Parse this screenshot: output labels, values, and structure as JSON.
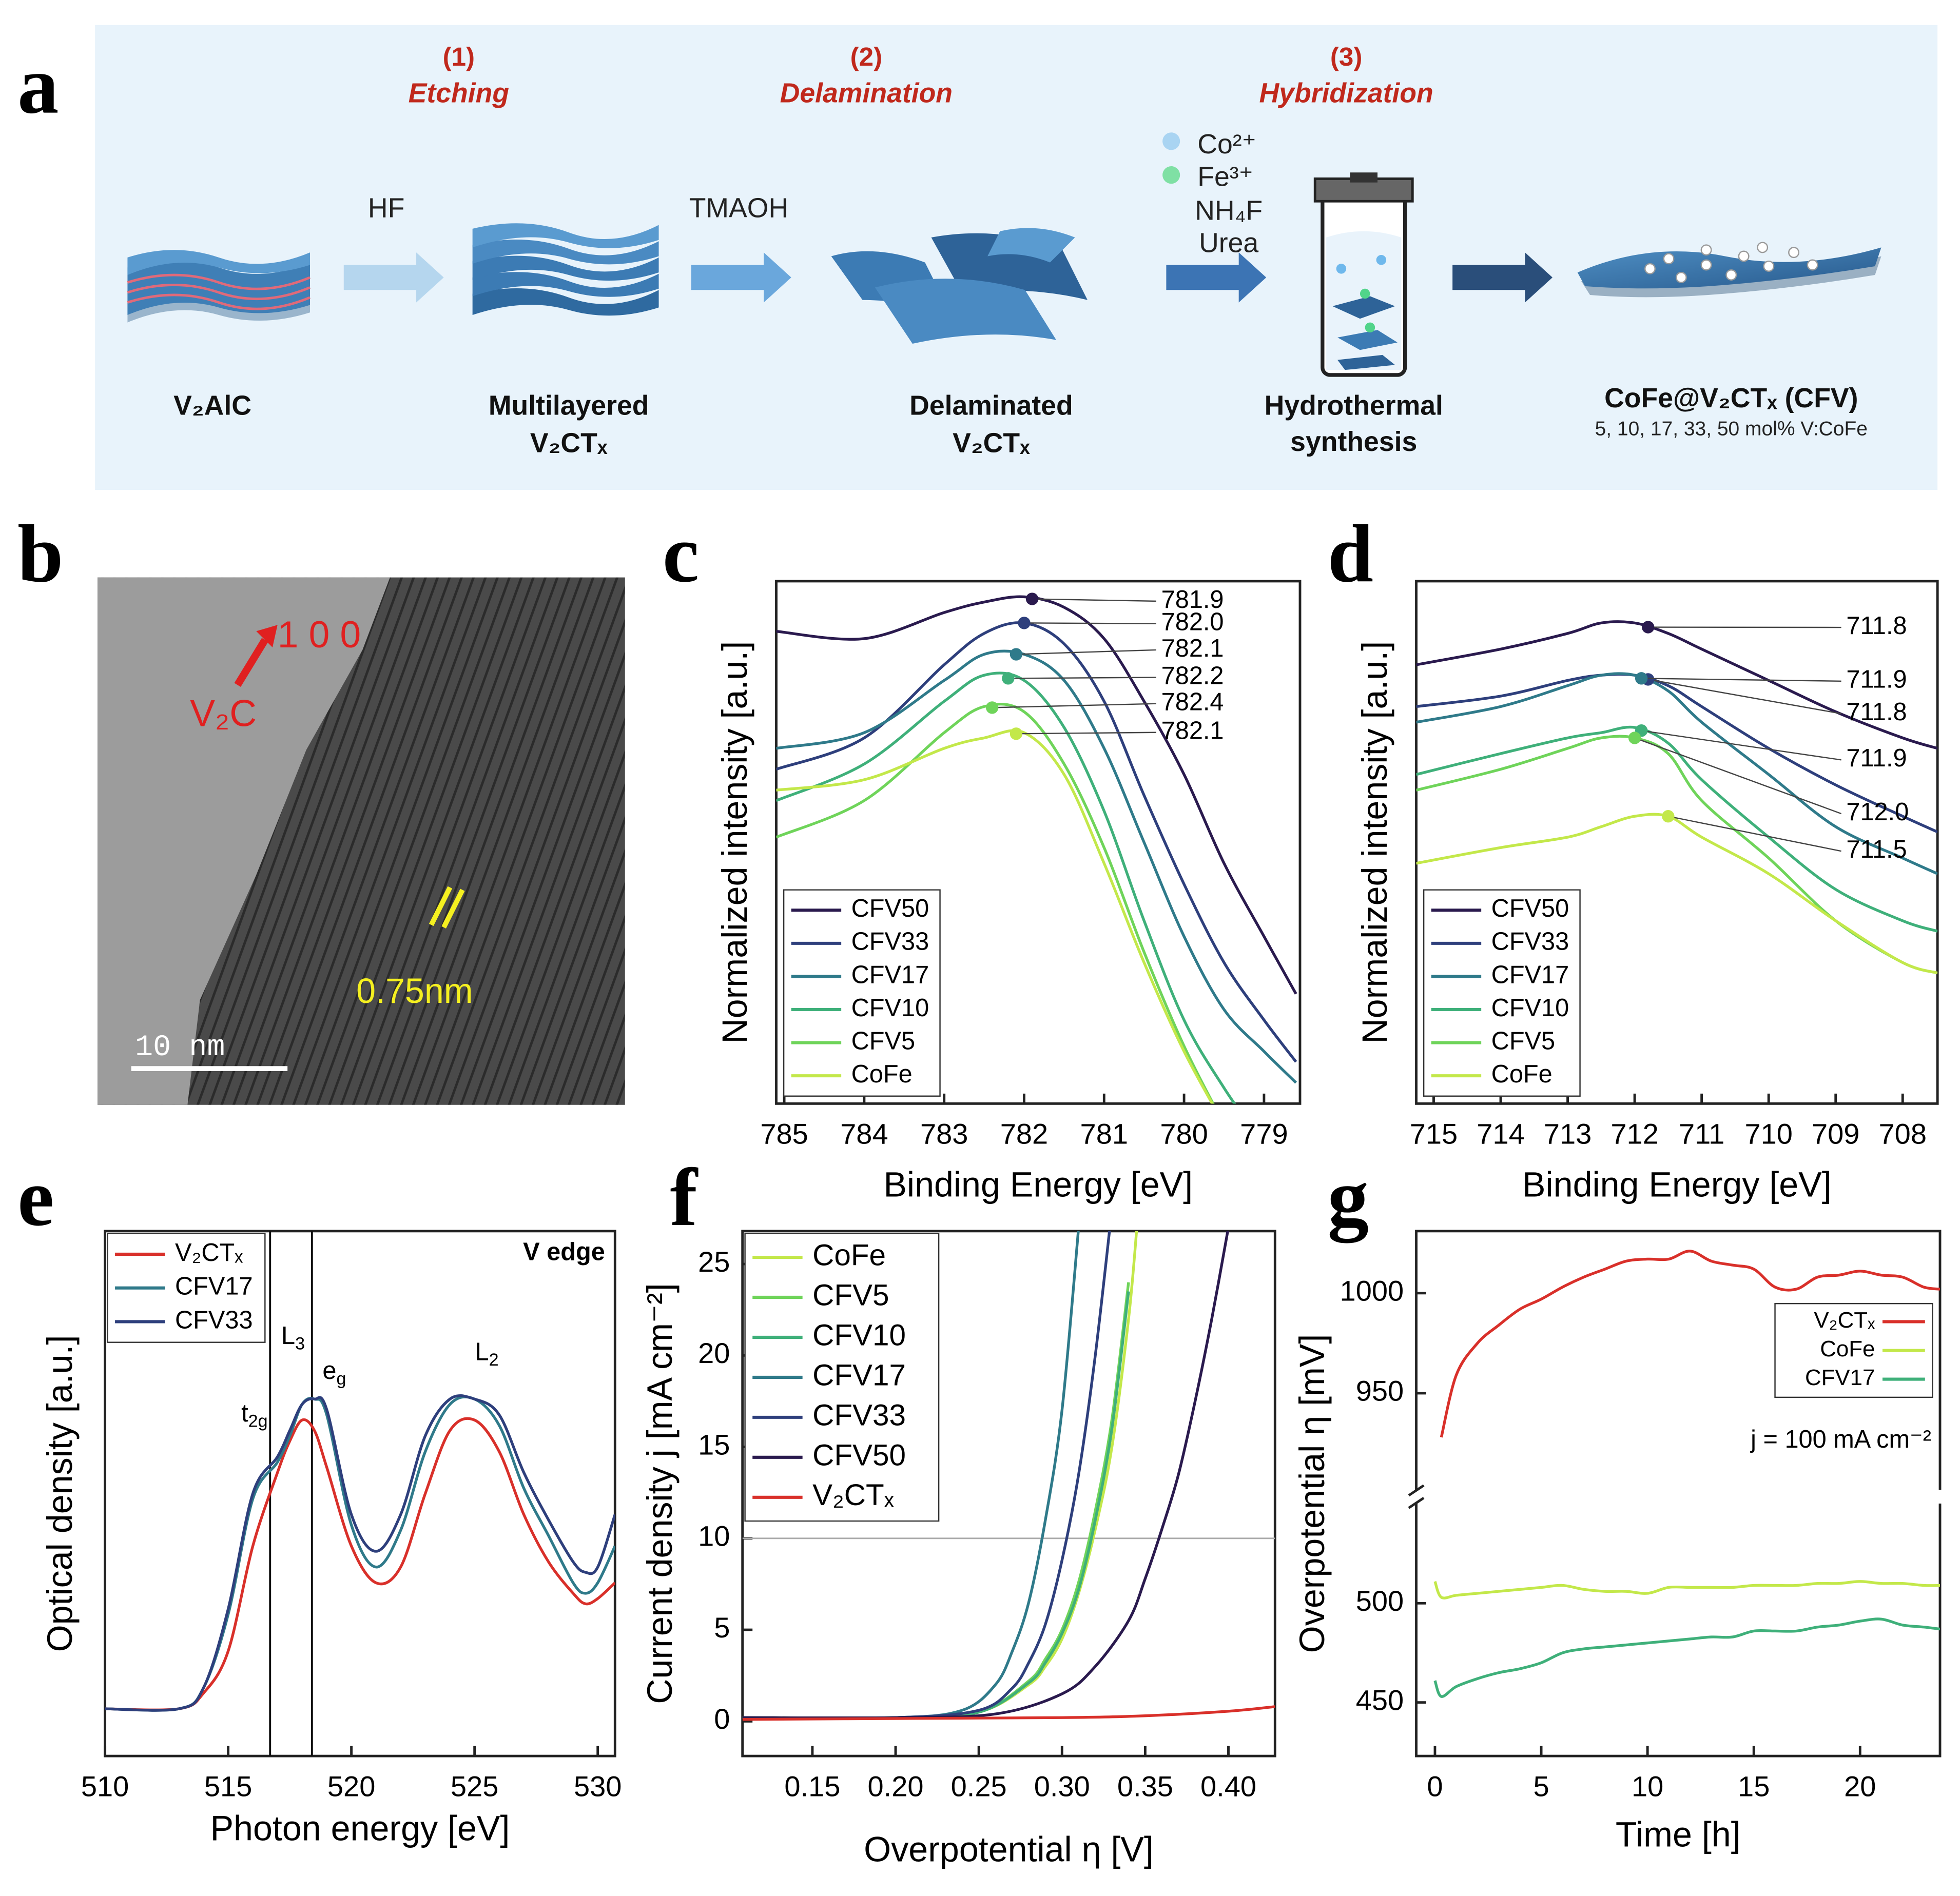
{
  "panel_labels": [
    "a",
    "b",
    "c",
    "d",
    "e",
    "f",
    "g"
  ],
  "scheme": {
    "steps": [
      {
        "number": "(1)",
        "name": "Etching"
      },
      {
        "number": "(2)",
        "name": "Delamination"
      },
      {
        "number": "(3)",
        "name": "Hybridization"
      }
    ],
    "reagents": [
      "HF",
      "TMAOH"
    ],
    "precursors": [
      "Co²⁺",
      "Fe³⁺",
      "NH₄F",
      "Urea"
    ],
    "materials": [
      [
        "V₂AlC"
      ],
      [
        "Multilayered",
        "V₂CTₓ"
      ],
      [
        "Delaminated",
        "V₂CTₓ"
      ],
      [
        "Hydrothermal",
        "synthesis"
      ],
      [
        "CoFe@V₂CTₓ (CFV)"
      ]
    ],
    "compositions": "5, 10, 17, 33, 50 mol% V:CoFe"
  },
  "micrograph": {
    "direction": "1 0 0",
    "phase": "V₂C",
    "spacing": "0.75nm",
    "scale_bar": "10 nm"
  },
  "chart_data": [
    {
      "type": "line",
      "xlabel": "Binding Energy [eV]",
      "ylabel": "Normalized intensity [a.u.]",
      "xlim": [
        785.1,
        778.55
      ],
      "ylim": [
        0,
        100
      ],
      "xticks": [
        785,
        784,
        783,
        782,
        781,
        780,
        779
      ],
      "legend": "lower left",
      "x": [
        785.1,
        784,
        783,
        782.5,
        782,
        781.5,
        781,
        780.5,
        780,
        779.5,
        779,
        778.6
      ],
      "series": [
        {
          "name": "CFV50",
          "color": "#2a1a4e",
          "values": [
            90.4,
            89,
            94,
            96,
            97,
            95,
            89,
            77,
            63,
            46,
            32,
            21
          ],
          "peak": 781.9
        },
        {
          "name": "CFV33",
          "color": "#2e3f7c",
          "values": [
            64,
            70,
            84,
            90,
            92,
            88,
            77,
            59,
            42,
            27,
            16,
            8
          ],
          "peak": {
            "value": 782.0,
            "label": "782.0"
          }
        },
        {
          "name": "CFV17",
          "color": "#2f7a8a",
          "values": [
            68,
            71,
            81,
            86,
            86,
            81,
            68,
            50,
            32,
            18,
            10,
            4
          ],
          "peak": 782.1
        },
        {
          "name": "CFV10",
          "color": "#3fb07a",
          "values": [
            58,
            65,
            77,
            82,
            81,
            72,
            56,
            35,
            16,
            3,
            -8,
            null
          ],
          "peak": 782.2
        },
        {
          "name": "CFV5",
          "color": "#6fd45a",
          "values": [
            51,
            58,
            71,
            76,
            75,
            65,
            49,
            29,
            11,
            -4,
            null,
            null
          ],
          "peak": 782.4
        },
        {
          "name": "CoFe",
          "color": "#c3e84a",
          "values": [
            60,
            62,
            68,
            70,
            71,
            63,
            46,
            27,
            10,
            -4,
            null,
            null
          ],
          "peak": 782.1
        }
      ]
    },
    {
      "type": "line",
      "xlabel": "Binding Energy [eV]",
      "ylabel": "Normalized intensity [a.u.]",
      "xlim": [
        715.26,
        707.48
      ],
      "ylim": [
        0,
        100
      ],
      "xticks": [
        715,
        714,
        713,
        712,
        711,
        710,
        709,
        708
      ],
      "legend": "lower left",
      "x": [
        715.26,
        714,
        713,
        712.5,
        712,
        711.5,
        711,
        710,
        709,
        708,
        707.48
      ],
      "series": [
        {
          "name": "CFV50",
          "color": "#2a1a4e",
          "values": [
            84,
            87,
            90,
            92,
            92,
            90,
            87,
            81,
            75,
            70,
            68
          ],
          "peak": 711.8
        },
        {
          "name": "CFV33",
          "color": "#2e3f7c",
          "values": [
            76,
            78,
            81,
            82,
            82,
            80,
            76,
            68,
            61,
            55,
            52
          ],
          "peak": 711.8
        },
        {
          "name": "CFV17",
          "color": "#2f7a8a",
          "values": [
            73,
            76,
            80,
            82,
            82,
            79,
            73,
            63,
            53,
            47,
            44
          ],
          "peak": 711.9
        },
        {
          "name": "CFV10",
          "color": "#3fb07a",
          "values": [
            63,
            67,
            70,
            71,
            72,
            69,
            62,
            51,
            41,
            35,
            33
          ],
          "peak": 711.9
        },
        {
          "name": "CFV5",
          "color": "#6fd45a",
          "values": [
            60,
            64,
            68,
            70,
            70,
            67,
            58,
            47,
            35,
            27,
            25
          ],
          "peak": {
            "value": 712.0,
            "label": "712.0"
          }
        },
        {
          "name": "CoFe",
          "color": "#c3e84a",
          "values": [
            46,
            49,
            51,
            53,
            55,
            55,
            51,
            44,
            35,
            27,
            25
          ],
          "peak": 711.5
        }
      ]
    },
    {
      "type": "line",
      "xlabel": "Photon energy  [eV]",
      "ylabel": "Optical density [a.u.]",
      "xlim": [
        510,
        530.7
      ],
      "ylim": [
        0,
        100
      ],
      "xticks": [
        510,
        515,
        520,
        525,
        530
      ],
      "legend": "upper left",
      "vlines": [
        516.7,
        518.4
      ],
      "annotations": [
        {
          "text": "V edge"
        },
        {
          "text": "L",
          "sub": "3"
        },
        {
          "text": "e",
          "sub": "g"
        },
        {
          "text": "t",
          "sub": "2g"
        },
        {
          "text": "L",
          "sub": "2"
        }
      ],
      "x": [
        510,
        513,
        514,
        515,
        516,
        517,
        517.5,
        518,
        518.5,
        519,
        520,
        521,
        522,
        523,
        524,
        525,
        526,
        527,
        528,
        529,
        529.5,
        530,
        530.7
      ],
      "series": [
        {
          "name": "V₂CTₓ",
          "color": "#d9302a",
          "values": [
            9,
            9,
            12,
            20,
            40,
            54,
            60,
            64,
            62,
            55,
            40,
            33,
            36,
            50,
            62,
            64,
            58,
            46,
            37,
            31,
            29,
            30,
            33
          ]
        },
        {
          "name": "CFV17",
          "color": "#2f7a8a",
          "values": [
            9,
            9,
            13,
            27,
            49,
            56,
            61,
            67,
            68,
            65,
            44,
            36,
            43,
            58,
            67,
            68,
            63,
            51,
            42,
            33,
            31,
            33,
            40
          ]
        },
        {
          "name": "CFV33",
          "color": "#2e3f7c",
          "values": [
            9,
            9,
            13,
            28,
            50,
            57,
            62,
            67,
            68,
            66,
            46,
            39,
            46,
            61,
            68,
            68,
            65,
            54,
            45,
            37,
            35,
            36,
            46
          ]
        }
      ]
    },
    {
      "type": "line",
      "xlabel": "Overpotential η [V]",
      "ylabel": "Current density j [mA cm⁻²]",
      "xlim": [
        0.108,
        0.428
      ],
      "ylim": [
        -1.9,
        26.8
      ],
      "xticks": [
        0.15,
        {
          "value": 0.2,
          "label": "0.20"
        },
        0.25,
        {
          "value": 0.3,
          "label": "0.30"
        },
        0.35,
        {
          "value": 0.4,
          "label": "0.40"
        }
      ],
      "yticks": [
        0,
        5,
        10,
        15,
        20,
        25
      ],
      "legend": "upper left",
      "hlines": [
        10
      ],
      "series": [
        {
          "name": "CoFe",
          "color": "#c3e84a",
          "x": [
            0.108,
            0.2,
            0.25,
            0.28,
            0.29,
            0.3,
            0.31,
            0.32,
            0.33,
            0.34,
            0.345
          ],
          "values": [
            0.2,
            0.2,
            0.5,
            2,
            3,
            4.5,
            7,
            10.5,
            15,
            22,
            27
          ]
        },
        {
          "name": "CFV5",
          "color": "#6fd45a",
          "x": [
            0.108,
            0.2,
            0.25,
            0.28,
            0.29,
            0.3,
            0.31,
            0.32,
            0.33,
            0.34
          ],
          "values": [
            0.2,
            0.2,
            0.5,
            2.2,
            3.4,
            5,
            7.6,
            11.5,
            16.5,
            24
          ]
        },
        {
          "name": "CFV10",
          "color": "#3fb07a",
          "x": [
            0.108,
            0.2,
            0.25,
            0.28,
            0.29,
            0.3,
            0.31,
            0.32,
            0.33,
            0.34
          ],
          "values": [
            0.2,
            0.2,
            0.5,
            2.1,
            3.2,
            4.8,
            7.2,
            11,
            16,
            23.5
          ]
        },
        {
          "name": "CFV17",
          "color": "#2f7a8a",
          "x": [
            0.108,
            0.2,
            0.24,
            0.26,
            0.27,
            0.28,
            0.29,
            0.3,
            0.31
          ],
          "values": [
            0.2,
            0.2,
            0.6,
            2,
            3.8,
            6.5,
            11,
            17,
            27
          ]
        },
        {
          "name": "CFV33",
          "color": "#2e3f7c",
          "x": [
            0.108,
            0.2,
            0.25,
            0.27,
            0.28,
            0.29,
            0.3,
            0.31,
            0.32,
            0.33
          ],
          "values": [
            0.2,
            0.2,
            0.6,
            1.8,
            3.2,
            5.3,
            8.8,
            13.5,
            20,
            28
          ]
        },
        {
          "name": "CFV50",
          "color": "#2a1a4e",
          "x": [
            0.108,
            0.2,
            0.26,
            0.3,
            0.32,
            0.34,
            0.35,
            0.36,
            0.37,
            0.38,
            0.39,
            0.4
          ],
          "values": [
            0.2,
            0.2,
            0.4,
            1.5,
            3,
            5.5,
            7.8,
            10.5,
            13.5,
            17.5,
            22,
            27
          ]
        },
        {
          "name": "V₂CTₓ",
          "color": "#d9302a",
          "x": [
            0.108,
            0.2,
            0.3,
            0.35,
            0.4,
            0.428
          ],
          "values": [
            0.1,
            0.15,
            0.2,
            0.3,
            0.55,
            0.8
          ]
        }
      ]
    },
    {
      "type": "line",
      "xlabel": "Time [h]",
      "ylabel": "Overpotential η [mV]",
      "xlim": [
        -0.88,
        23.76
      ],
      "xticks": [
        0,
        5,
        10,
        15,
        20
      ],
      "legend": "upper right",
      "y_segments": [
        {
          "ylim": [
            423,
            549
          ],
          "yticks": [
            450,
            500
          ]
        },
        {
          "ylim": [
            903,
            1031
          ],
          "yticks": [
            950,
            1000
          ]
        }
      ],
      "annotations": [
        {
          "text": "j = 100 mA cm⁻²"
        }
      ],
      "x": [
        0,
        0.3,
        1,
        2,
        3,
        4,
        5,
        6,
        7,
        8,
        9,
        10,
        11,
        12,
        13,
        14,
        15,
        16,
        17,
        18,
        19,
        20,
        21,
        22,
        23,
        23.76
      ],
      "series": [
        {
          "name": "V₂CTₓ",
          "color": "#d9302a",
          "values": [
            null,
            928,
            959,
            975,
            984,
            992,
            997,
            1003,
            1008,
            1012,
            1016,
            1017,
            1017,
            1021,
            1016,
            1014,
            1012,
            1003,
            1002,
            1008,
            1009,
            1011,
            1009,
            1008,
            1003,
            1002
          ]
        },
        {
          "name": "CoFe",
          "color": "#c3e84a",
          "values": [
            511,
            503,
            504,
            505,
            506,
            507,
            508,
            509,
            507,
            506,
            506,
            505,
            508,
            508,
            508,
            508,
            509,
            509,
            509,
            510,
            510,
            511,
            510,
            510,
            509,
            509
          ]
        },
        {
          "name": "CFV17",
          "color": "#3fb07a",
          "values": [
            461,
            453,
            458,
            462,
            465,
            467,
            470,
            475,
            477,
            478,
            479,
            480,
            481,
            482,
            483,
            483,
            486,
            486,
            486,
            488,
            489,
            491,
            492,
            489,
            488,
            487
          ]
        }
      ]
    }
  ]
}
